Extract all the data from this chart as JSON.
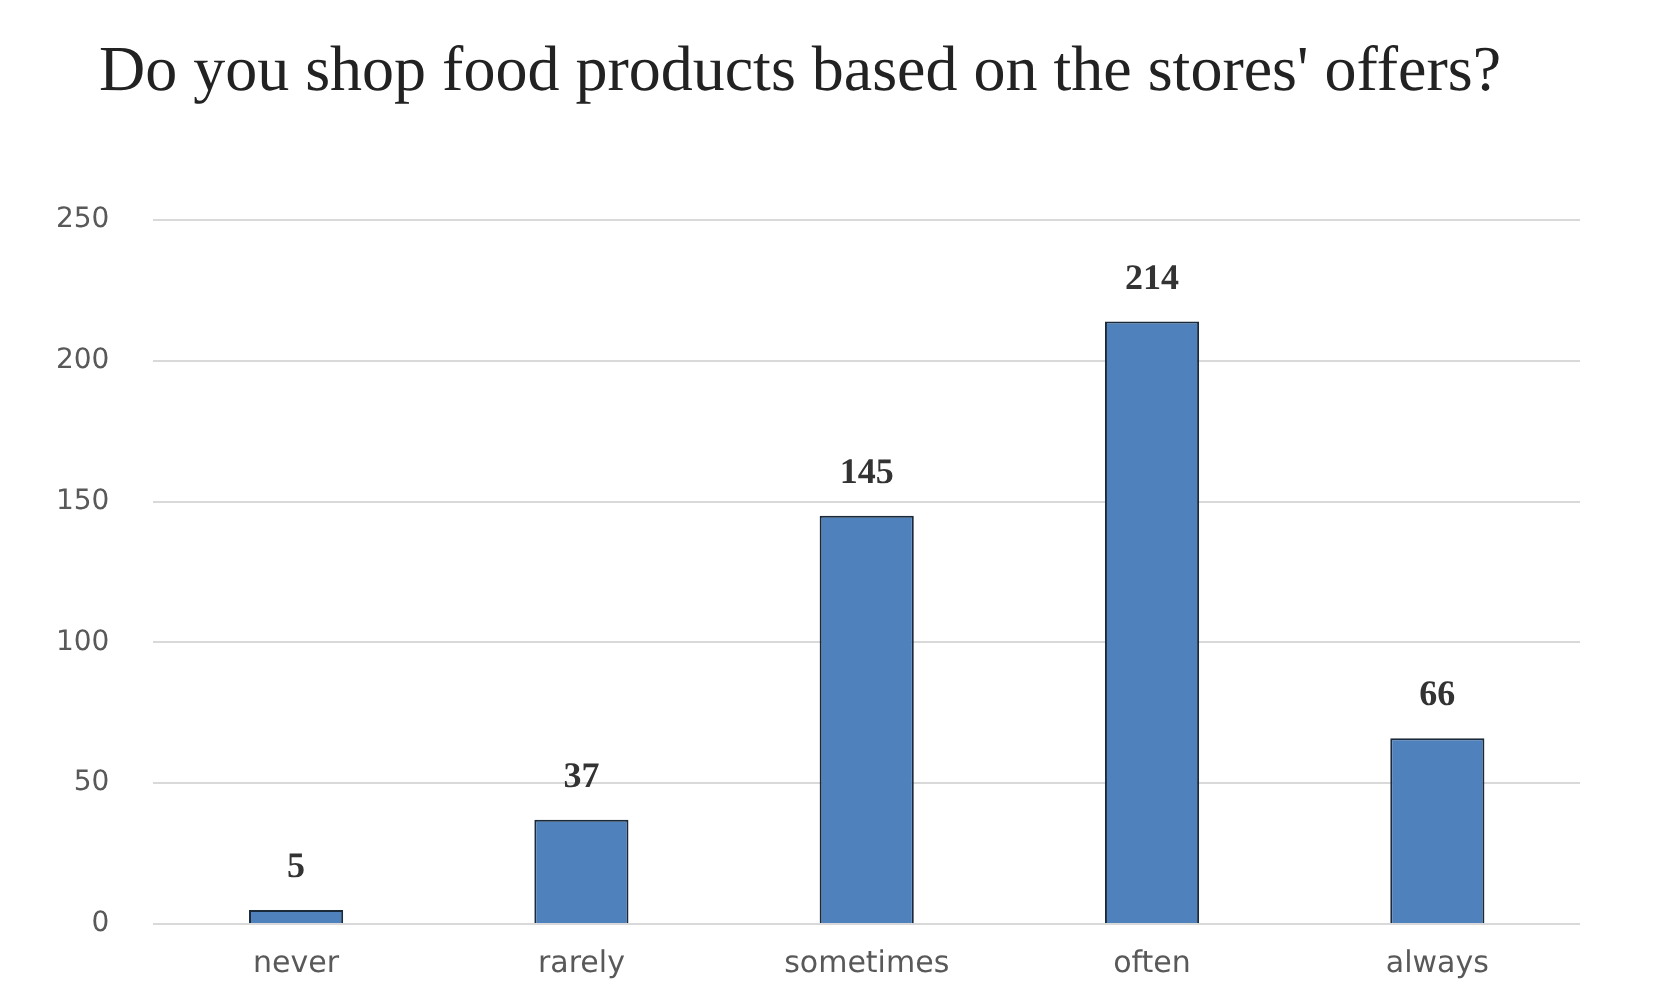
{
  "chart_data": {
    "type": "bar",
    "title": "Do you shop food products based on the stores' offers?",
    "categories": [
      "never",
      "rarely",
      "sometimes",
      "often",
      "always"
    ],
    "values": [
      5,
      37,
      145,
      214,
      66
    ],
    "color": "#4f81bd",
    "ylim": [
      0,
      250
    ],
    "yticks": [
      0,
      50,
      100,
      150,
      200,
      250
    ],
    "grid": "y",
    "legend": false,
    "data_labels": true
  }
}
